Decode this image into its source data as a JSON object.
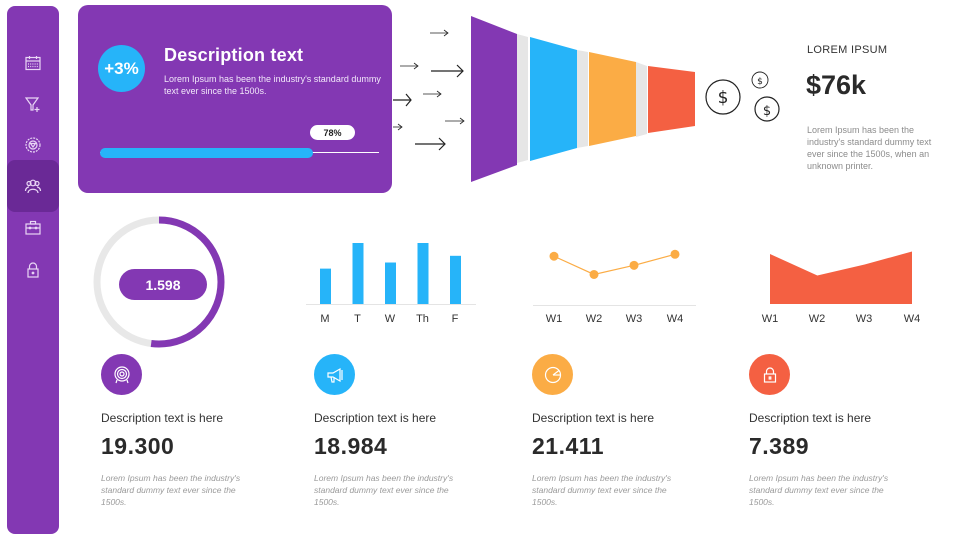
{
  "sidebar": {
    "color": "#8338b3",
    "active_color": "#6a2996",
    "items": [
      {
        "name": "calendar",
        "icon": "calendar-icon",
        "active": false
      },
      {
        "name": "filter-add",
        "icon": "filter-plus-icon",
        "active": false
      },
      {
        "name": "settings",
        "icon": "gear-icon",
        "active": false
      },
      {
        "name": "users",
        "icon": "users-icon",
        "active": true
      },
      {
        "name": "portfolio",
        "icon": "briefcase-icon",
        "active": false
      },
      {
        "name": "security",
        "icon": "lock-icon",
        "active": false
      }
    ]
  },
  "hero": {
    "badge": "+3%",
    "title": "Description text",
    "description": "Lorem Ipsum has been the industry's standard dummy text ever since the 1500s.",
    "progress_label": "78%",
    "progress_value": 78
  },
  "funnel": {
    "stages": [
      {
        "color": "#8338b3"
      },
      {
        "color": "#26b4f9"
      },
      {
        "color": "#fbac45"
      },
      {
        "color": "#f46042"
      }
    ],
    "output_icon": "dollar-coins-icon"
  },
  "kpi": {
    "label": "LOREM IPSUM",
    "value": "$76k",
    "description": "Lorem Ipsum has been the industry's standard dummy text ever since the 1500s, when an unknown printer."
  },
  "donut": {
    "value_label": "1.598",
    "percent": 52,
    "color": "#8338b3",
    "track_color": "#e8e8e8"
  },
  "chart_data": [
    {
      "type": "bar",
      "categories": [
        "M",
        "T",
        "W",
        "Th",
        "F"
      ],
      "values": [
        58,
        100,
        68,
        100,
        79
      ],
      "color": "#26b4f9",
      "title": "",
      "xlabel": "",
      "ylabel": "",
      "ylim": [
        0,
        100
      ],
      "grid": false
    },
    {
      "type": "line",
      "categories": [
        "W1",
        "W2",
        "W3",
        "W4"
      ],
      "values": [
        75,
        47,
        61,
        78
      ],
      "color": "#fbac45",
      "title": "",
      "xlabel": "",
      "ylabel": "",
      "ylim": [
        0,
        100
      ],
      "grid": false
    },
    {
      "type": "area",
      "categories": [
        "W1",
        "W2",
        "W3",
        "W4"
      ],
      "values": [
        100,
        57,
        79,
        105
      ],
      "color": "#f46042",
      "title": "",
      "xlabel": "",
      "ylabel": "",
      "ylim": [
        0,
        110
      ],
      "grid": false
    }
  ],
  "stats": [
    {
      "icon": "target-icon",
      "color": "#8338b3",
      "title": "Description text is here",
      "value": "19.300",
      "description": "Lorem Ipsum has been the industry's standard dummy text ever since the 1500s."
    },
    {
      "icon": "megaphone-icon",
      "color": "#26b4f9",
      "title": "Description text is here",
      "value": "18.984",
      "description": "Lorem Ipsum has been the industry's standard dummy text ever since the 1500s."
    },
    {
      "icon": "pie-chart-icon",
      "color": "#fbac45",
      "title": "Description text is here",
      "value": "21.411",
      "description": "Lorem Ipsum has been the industry's standard dummy text ever since the 1500s."
    },
    {
      "icon": "lock-icon",
      "color": "#f46042",
      "title": "Description text is here",
      "value": "7.389",
      "description": "Lorem Ipsum has been the industry's standard dummy text ever since the 1500s."
    }
  ]
}
